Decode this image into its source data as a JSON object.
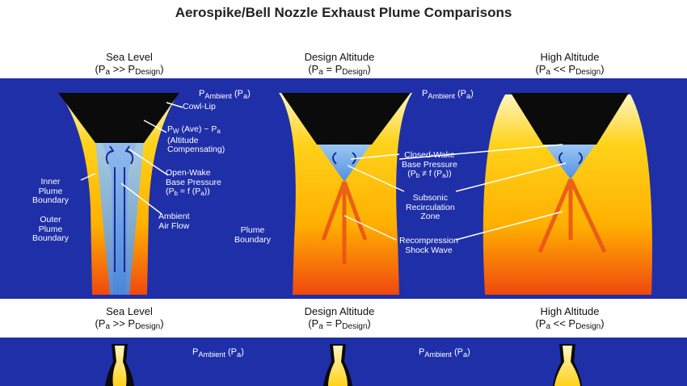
{
  "title": "Aerospike/Bell Nozzle Exhaust Plume Comparisons",
  "columns": [
    {
      "name": "Sea Level",
      "pressure_left": "(P",
      "pressure_mid": "a",
      "pressure_rel": " >> P",
      "pressure_sub": "Design",
      "pressure_close": ")"
    },
    {
      "name": "Design Altitude",
      "pressure_left": "(P",
      "pressure_mid": "a",
      "pressure_rel": " = P",
      "pressure_sub": "Design",
      "pressure_close": ")"
    },
    {
      "name": "High Altitude",
      "pressure_left": "(P",
      "pressure_mid": "a",
      "pressure_rel": " << P",
      "pressure_sub": "Design",
      "pressure_close": ")"
    }
  ],
  "ambient": {
    "p": "P",
    "sub": "Ambient",
    "tail_p": " (P",
    "tail_sub": "a",
    "tail_close": ")"
  },
  "labels": {
    "cowl_lip": "Cowl-Lip",
    "pw_line1": "P",
    "pw_sub": "W",
    "pw_rest": " (Ave) ~ P",
    "pw_sub2": "a",
    "altitude_comp_1": "(Altitude",
    "altitude_comp_2": "Compensating)",
    "open_wake_1": "Open-Wake",
    "open_wake_2": "Base Pressure",
    "open_wake_3_a": "(P",
    "open_wake_3_sub": "b",
    "open_wake_3_b": " = f (P",
    "open_wake_3_sub2": "a",
    "open_wake_3_c": "))",
    "inner_plume_1": "Inner",
    "inner_plume_2": "Plume",
    "inner_plume_3": "Boundary",
    "outer_plume_1": "Outer",
    "outer_plume_2": "Plume",
    "outer_plume_3": "Boundary",
    "ambient_air_1": "Ambient",
    "ambient_air_2": "Air Flow",
    "plume_boundary_1": "Plume",
    "plume_boundary_2": "Boundary",
    "closed_wake_1": "Closed-Wake",
    "closed_wake_2": "Base Pressure",
    "closed_wake_3_a": "(P",
    "closed_wake_3_sub": "b",
    "closed_wake_3_b": " ≠ f (P",
    "closed_wake_3_sub2": "a",
    "closed_wake_3_c": "))",
    "subsonic_1": "Subsonic",
    "subsonic_2": "Recirculation",
    "subsonic_3": "Zone",
    "recomp_1": "Recompression",
    "recomp_2": "Shock Wave"
  },
  "colors": {
    "panel": "#1f2fa8",
    "plume_top": "#fff3a0",
    "plume_bottom": "#f04a10",
    "nozzle": "#0b0b0b",
    "wake": "#5fa0e6"
  }
}
